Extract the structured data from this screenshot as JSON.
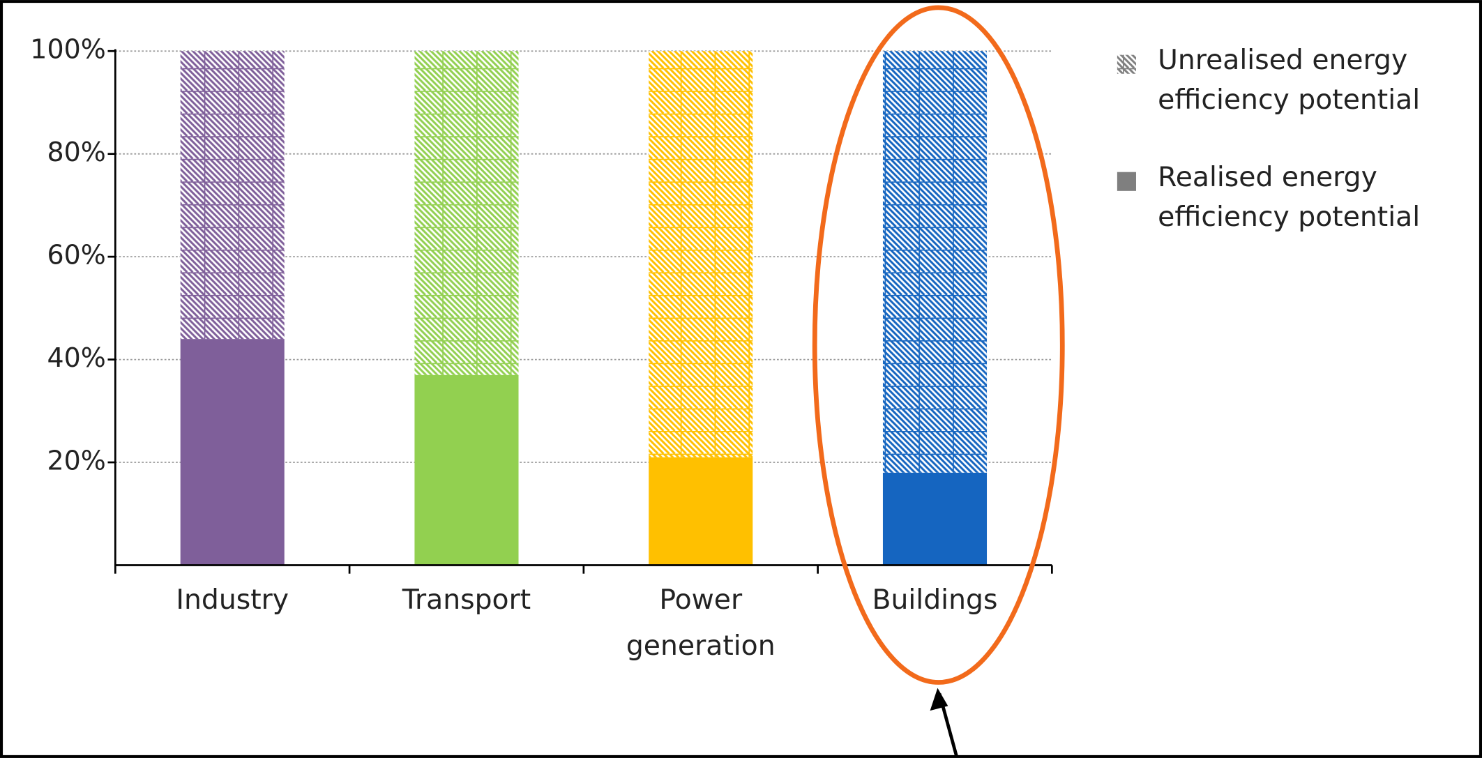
{
  "chart_data": {
    "type": "stacked_bar",
    "categories": [
      "Industry",
      "Transport",
      "Power generation",
      "Buildings"
    ],
    "category_colors": [
      "#7f5f9a",
      "#92d050",
      "#ffc000",
      "#1565c0"
    ],
    "series": [
      {
        "name": "Realised energy efficiency potential",
        "color": "#7f7f7f",
        "hatched": false,
        "values": [
          44,
          37,
          21,
          18
        ]
      },
      {
        "name": "Unrealised energy efficiency potential",
        "color": "#7f7f7f",
        "hatched": true,
        "values": [
          56,
          63,
          79,
          82
        ]
      }
    ],
    "ylim": [
      0,
      100
    ],
    "yticks": [
      {
        "value": 20,
        "label": "20%"
      },
      {
        "value": 40,
        "label": "40%"
      },
      {
        "value": 60,
        "label": "60%"
      },
      {
        "value": 80,
        "label": "80%"
      },
      {
        "value": 100,
        "label": "100%"
      }
    ],
    "grid": true,
    "legend": "right"
  }
}
